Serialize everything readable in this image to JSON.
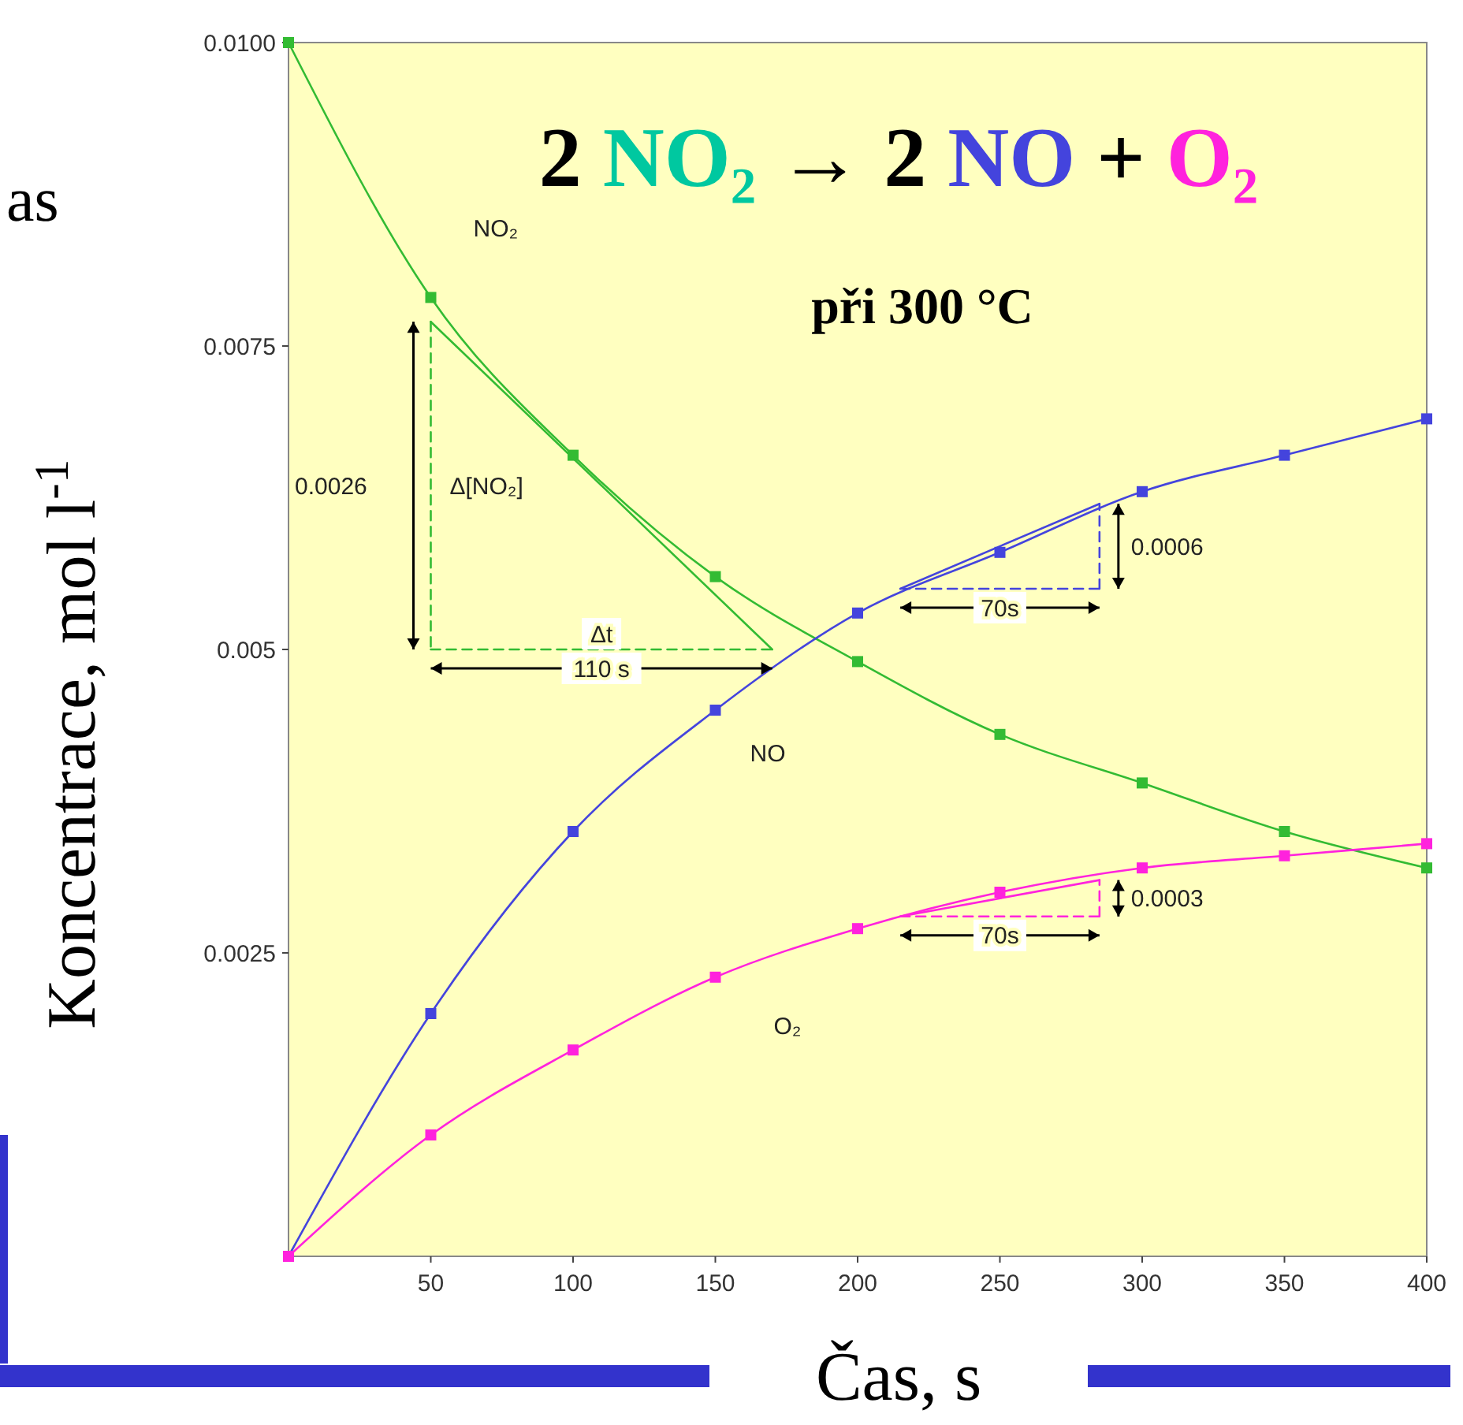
{
  "chart_data": {
    "type": "line",
    "title": "2 NO₂ → 2 NO + O₂",
    "subtitle": "při 300 °C",
    "xlabel": "Čas, s",
    "ylabel": "Koncentrace, mol l$^{-1}$",
    "x": [
      0,
      50,
      100,
      150,
      200,
      250,
      300,
      350,
      400
    ],
    "series": [
      {
        "name": "NO₂",
        "color": "#33bb33",
        "values": [
          0.01,
          0.0079,
          0.0066,
          0.0056,
          0.0049,
          0.0043,
          0.0039,
          0.0035,
          0.0032
        ]
      },
      {
        "name": "NO",
        "color": "#4444dd",
        "values": [
          0,
          0.002,
          0.0035,
          0.0045,
          0.0053,
          0.0058,
          0.0063,
          0.0066,
          0.0069
        ]
      },
      {
        "name": "O₂",
        "color": "#ff22dd",
        "values": [
          0,
          0.001,
          0.0017,
          0.0023,
          0.0027,
          0.003,
          0.0032,
          0.0033,
          0.0034
        ]
      },
      {
        "type": "line",
        "color": "#33bb33",
        "x": [
          50,
          170
        ],
        "values": [
          0.0077,
          0.005
        ],
        "marker": "none"
      },
      {
        "type": "line",
        "color": "#33bb33",
        "x": [
          50,
          50
        ],
        "values": [
          0.0077,
          0.005
        ],
        "marker": "none",
        "line_style": "dashed"
      },
      {
        "type": "line",
        "color": "#33bb33",
        "x": [
          50,
          170
        ],
        "values": [
          0.005,
          0.005
        ],
        "marker": "none",
        "line_style": "dashed"
      },
      {
        "type": "line",
        "color": "#4444dd",
        "x": [
          215,
          285
        ],
        "values": [
          0.0055,
          0.0062
        ],
        "marker": "none"
      },
      {
        "type": "line",
        "color": "#4444dd",
        "x": [
          285,
          285
        ],
        "values": [
          0.0055,
          0.0062
        ],
        "marker": "none",
        "line_style": "dashed"
      },
      {
        "type": "line",
        "color": "#4444dd",
        "x": [
          215,
          285
        ],
        "values": [
          0.0055,
          0.0055
        ],
        "marker": "none",
        "line_style": "dashed"
      },
      {
        "type": "line",
        "color": "#ff22dd",
        "x": [
          215,
          285
        ],
        "values": [
          0.0028,
          0.0031
        ],
        "marker": "none"
      },
      {
        "type": "line",
        "color": "#ff22dd",
        "x": [
          285,
          285
        ],
        "values": [
          0.0028,
          0.0031
        ],
        "marker": "none",
        "line_style": "dashed"
      },
      {
        "type": "line",
        "color": "#ff22dd",
        "x": [
          215,
          285
        ],
        "values": [
          0.0028,
          0.0028
        ],
        "marker": "none",
        "line_style": "dashed"
      }
    ],
    "marker": "square",
    "xlim": [
      0,
      400
    ],
    "ylim": [
      0,
      0.01
    ],
    "xticks": [
      50,
      100,
      150,
      200,
      250,
      300,
      350,
      400
    ],
    "yticks": [
      {
        "value": 0.0025,
        "label": "0.0025"
      },
      {
        "value": 0.005,
        "label": "0.005"
      },
      {
        "value": 0.0075,
        "label": "0.0075"
      },
      {
        "value": 0.01,
        "label": "0.0100"
      }
    ],
    "grid": false,
    "annotations": [
      "as",
      "0.0026",
      "Δ[NO₂]",
      "110 s",
      "Δt",
      "0.0006",
      "70s",
      "0.0003",
      "70s"
    ]
  }
}
